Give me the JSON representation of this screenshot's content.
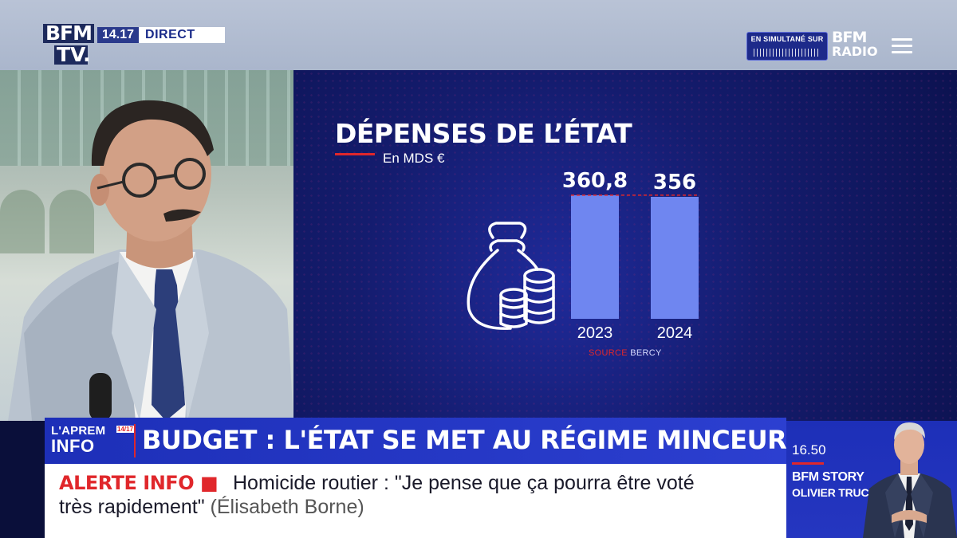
{
  "header": {
    "channel_logo_line1": "BFM",
    "channel_logo_line2": "TV.",
    "time": "14.17",
    "live_label": "DIRECT",
    "simulcast_label": "EN SIMULTANÉ SUR",
    "radio_logo_line1": "BFM",
    "radio_logo_line2": "RADIO"
  },
  "graphic": {
    "title": "DÉPENSES DE L’ÉTAT",
    "unit": "En MDS €",
    "source_prefix": "SOURCE",
    "source_name": "BERCY"
  },
  "chart_data": {
    "type": "bar",
    "title": "DÉPENSES DE L’ÉTAT",
    "subtitle": "En MDS €",
    "categories": [
      "2023",
      "2024"
    ],
    "values": [
      360.8,
      356
    ],
    "value_labels": [
      "360,8",
      "356"
    ],
    "bar_color": "#6f86f0",
    "source": "SOURCE BERCY"
  },
  "headline": {
    "program_line1": "L'APREM",
    "program_line2": "INFO",
    "program_time": "14/17",
    "text": "BUDGET : L'ÉTAT SE MET AU RÉGIME MINCEUR"
  },
  "ticker": {
    "label": "ALERTE INFO ■",
    "line1": "Homicide routier : \"Je pense que ça pourra être voté",
    "line2": "très rapidement\"",
    "attribution": "(Élisabeth Borne)"
  },
  "next_program": {
    "time": "16.50",
    "show": "BFM STORY",
    "host": "OLIVIER TRUCHOT"
  },
  "colors": {
    "brand_blue": "#1d2fb8",
    "alert_red": "#e0272b",
    "graphic_bg": "#141c6e"
  }
}
